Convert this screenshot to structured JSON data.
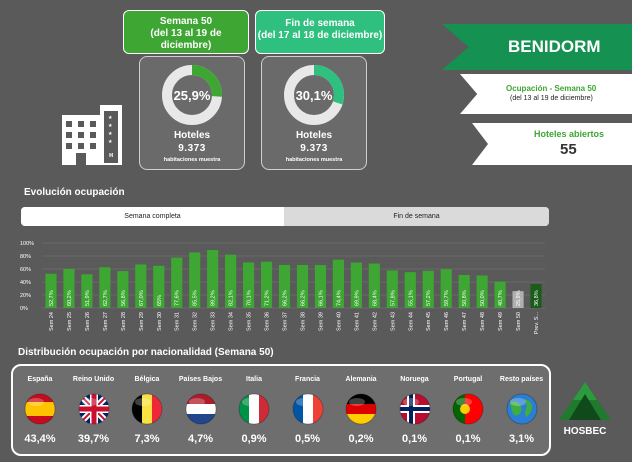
{
  "periods": {
    "week": {
      "title": "Semana 50",
      "range": "(del 13 al 19 de diciembre)",
      "value": "25,9%",
      "pct": 25.9,
      "label": "Hoteles",
      "count": "9.373",
      "sub": "habitaciones muestra"
    },
    "weekend": {
      "title": "Fin de semana",
      "range": "(del 17 al 18 de diciembre)",
      "value": "30,1%",
      "pct": 30.1,
      "label": "Hoteles",
      "count": "9.373",
      "sub": "habitaciones muestra"
    }
  },
  "banners": {
    "city": "BENIDORM",
    "occupancy_title": "Ocupación - Semana 50",
    "occupancy_range": "(del 13 al 19 de diciembre)",
    "open_hotels_title": "Hoteles abiertos",
    "open_hotels_value": "55"
  },
  "evolution": {
    "title": "Evolución ocupación",
    "tabs": [
      "Semana completa",
      "Fin de semana"
    ]
  },
  "chart_data": {
    "type": "bar",
    "yticks": [
      "0%",
      "20%",
      "40%",
      "60%",
      "80%",
      "100%"
    ],
    "ylim": [
      0,
      100
    ],
    "categories": [
      "Sem 24",
      "Sem 25",
      "Sem 26",
      "Sem 27",
      "Sem 28",
      "Sem 29",
      "Sem 30",
      "Sem 31",
      "Sem 32",
      "Sem 33",
      "Sem 34",
      "Sem 35",
      "Sem 36",
      "Sem 37",
      "Sem 38",
      "Sem 39",
      "Sem 40",
      "Sem 41",
      "Sem 42",
      "Sem 43",
      "Sem 44",
      "Sem 45",
      "Sem 46",
      "Sem 47",
      "Sem 48",
      "Sem 49",
      "Sem 50",
      "Prev. S..."
    ],
    "values": [
      52.7,
      60.2,
      51.9,
      62.7,
      56.8,
      67.0,
      65.0,
      77.6,
      85.5,
      89.2,
      82.1,
      70.1,
      71.2,
      66.2,
      66.2,
      66.1,
      74.4,
      69.9,
      68.4,
      57.8,
      55.1,
      57.2,
      59.7,
      50.8,
      50.0,
      40.7,
      25.9,
      36.8
    ],
    "labels": [
      "52,7%",
      "60,2%",
      "51,9%",
      "62,7%",
      "56,8%",
      "67,0%",
      "65%",
      "77,6%",
      "85,5%",
      "89,2%",
      "82,1%",
      "70,1%",
      "71,2%",
      "66,2%",
      "66,2%",
      "66,1%",
      "74,4%",
      "69,9%",
      "68,4%",
      "57,8%",
      "55,1%",
      "57,2%",
      "59,7%",
      "50,8%",
      "50,0%",
      "40,7%",
      "25,9%",
      "36,8%"
    ],
    "colors": {
      "bar": "#3ea632",
      "current": "#b0b0b0",
      "forecast": "#1a5c1a"
    }
  },
  "nationalities": {
    "title": "Distribución ocupación por nacionalidad (Semana 50)",
    "items": [
      {
        "name": "España",
        "value": "43,4%",
        "flag": "spain-flag-icon"
      },
      {
        "name": "Reino Unido",
        "value": "39,7%",
        "flag": "uk-flag-icon"
      },
      {
        "name": "Bélgica",
        "value": "7,3%",
        "flag": "belgium-flag-icon"
      },
      {
        "name": "Países Bajos",
        "value": "4,7%",
        "flag": "netherlands-flag-icon"
      },
      {
        "name": "Italia",
        "value": "0,9%",
        "flag": "italy-flag-icon"
      },
      {
        "name": "Francia",
        "value": "0,5%",
        "flag": "france-flag-icon"
      },
      {
        "name": "Alemania",
        "value": "0,2%",
        "flag": "germany-flag-icon"
      },
      {
        "name": "Noruega",
        "value": "0,1%",
        "flag": "norway-flag-icon"
      },
      {
        "name": "Portugal",
        "value": "0,1%",
        "flag": "portugal-flag-icon"
      },
      {
        "name": "Resto países",
        "value": "3,1%",
        "flag": "globe-icon"
      }
    ]
  },
  "logo": {
    "text": "HOSBEC"
  }
}
